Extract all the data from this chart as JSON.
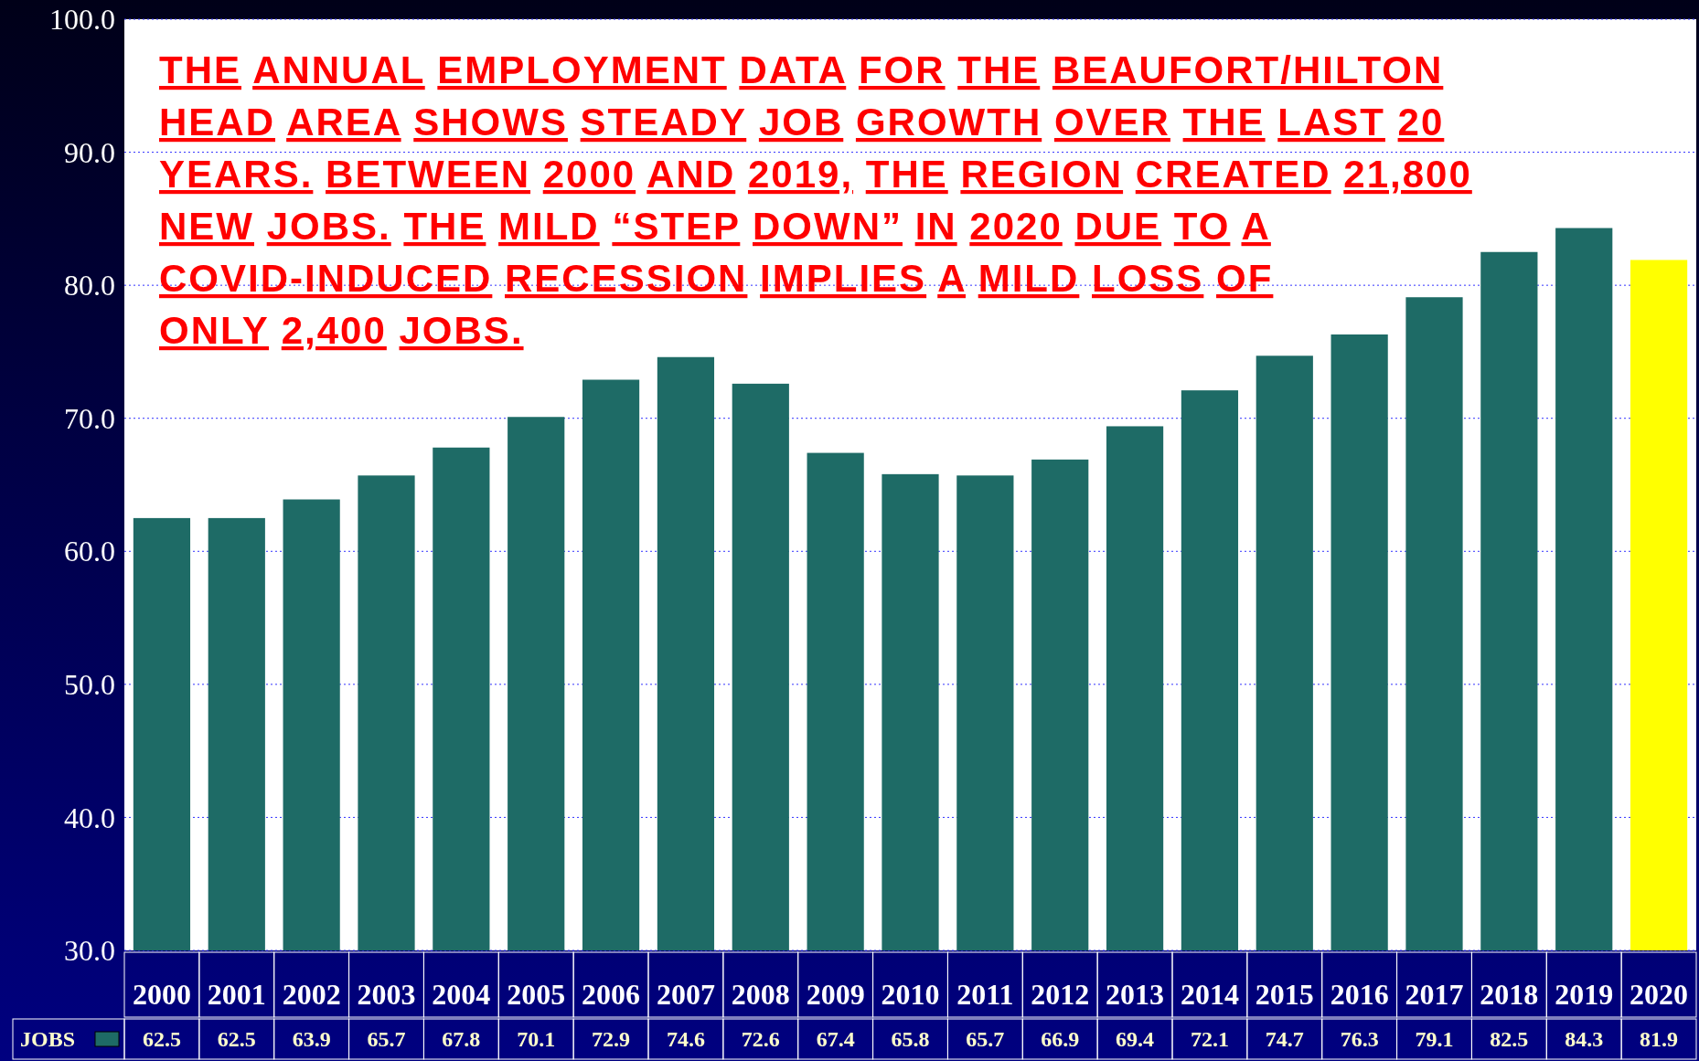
{
  "chart_data": {
    "type": "bar",
    "title": "THE ANNUAL EMPLOYMENT DATA FOR THE BEAUFORT/HILTON\nHEAD AREA SHOWS STEADY JOB GROWTH OVER THE LAST 20\nYEARS. BETWEEN 2000 AND 2019, THE REGION CREATED 21,800\nNEW JOBS. THE MILD “STEP DOWN” IN 2020 DUE TO A\nCOVID-INDUCED RECESSION IMPLIES A MILD LOSS OF\nONLY 2,400 JOBS.",
    "categories": [
      "2000",
      "2001",
      "2002",
      "2003",
      "2004",
      "2005",
      "2006",
      "2007",
      "2008",
      "2009",
      "2010",
      "2011",
      "2012",
      "2013",
      "2014",
      "2015",
      "2016",
      "2017",
      "2018",
      "2019",
      "2020"
    ],
    "series": [
      {
        "name": "JOBS",
        "color": "#1e6b66",
        "values": [
          62.5,
          62.5,
          63.9,
          65.7,
          67.8,
          70.1,
          72.9,
          74.6,
          72.6,
          67.4,
          65.8,
          65.7,
          66.9,
          69.4,
          72.1,
          74.7,
          76.3,
          79.1,
          82.5,
          84.3,
          81.9
        ],
        "colors": [
          "#1e6b66",
          "#1e6b66",
          "#1e6b66",
          "#1e6b66",
          "#1e6b66",
          "#1e6b66",
          "#1e6b66",
          "#1e6b66",
          "#1e6b66",
          "#1e6b66",
          "#1e6b66",
          "#1e6b66",
          "#1e6b66",
          "#1e6b66",
          "#1e6b66",
          "#1e6b66",
          "#1e6b66",
          "#1e6b66",
          "#1e6b66",
          "#1e6b66",
          "#ffff00"
        ]
      }
    ],
    "ylim": [
      30,
      100
    ],
    "yticks": [
      {
        "value": 30,
        "label": "30.0"
      },
      {
        "value": 40,
        "label": "40.0"
      },
      {
        "value": 50,
        "label": "50.0"
      },
      {
        "value": 60,
        "label": "60.0"
      },
      {
        "value": 70,
        "label": "70.0"
      },
      {
        "value": 80,
        "label": "80.0"
      },
      {
        "value": 90,
        "label": "90.0"
      },
      {
        "value": 100,
        "label": "100.0"
      }
    ],
    "grid": "y",
    "data_labels": true
  }
}
